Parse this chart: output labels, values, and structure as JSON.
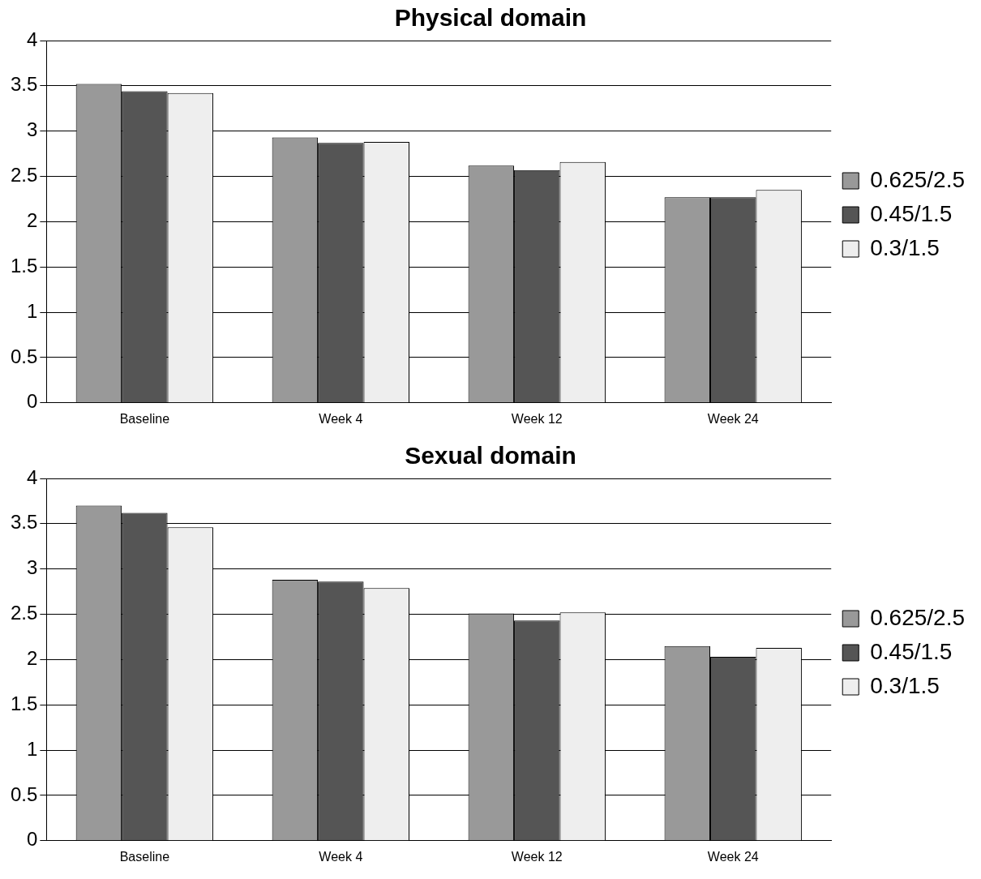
{
  "chart_data": [
    {
      "type": "bar",
      "title": "Physical domain",
      "categories": [
        "Baseline",
        "Week 4",
        "Week 12",
        "Week 24"
      ],
      "series": [
        {
          "name": "0.625/2.5",
          "color": "#999999",
          "values": [
            3.52,
            2.93,
            2.62,
            2.27
          ]
        },
        {
          "name": "0.45/1.5",
          "color": "#555555",
          "values": [
            3.44,
            2.87,
            2.57,
            2.27
          ]
        },
        {
          "name": "0.3/1.5",
          "color": "#eeeeee",
          "values": [
            3.42,
            2.88,
            2.66,
            2.35
          ]
        }
      ],
      "ylim": [
        0,
        4
      ],
      "yticks": [
        0,
        0.5,
        1,
        1.5,
        2,
        2.5,
        3,
        3.5,
        4
      ],
      "grid": "y",
      "legend": "right"
    },
    {
      "type": "bar",
      "title": "Sexual domain",
      "categories": [
        "Baseline",
        "Week 4",
        "Week 12",
        "Week 24"
      ],
      "series": [
        {
          "name": "0.625/2.5",
          "color": "#999999",
          "values": [
            3.7,
            2.88,
            2.51,
            2.15
          ]
        },
        {
          "name": "0.45/1.5",
          "color": "#555555",
          "values": [
            3.62,
            2.86,
            2.43,
            2.03
          ]
        },
        {
          "name": "0.3/1.5",
          "color": "#eeeeee",
          "values": [
            3.46,
            2.79,
            2.52,
            2.13
          ]
        }
      ],
      "ylim": [
        0,
        4
      ],
      "yticks": [
        0,
        0.5,
        1,
        1.5,
        2,
        2.5,
        3,
        3.5,
        4
      ],
      "grid": "y",
      "legend": "right"
    }
  ]
}
